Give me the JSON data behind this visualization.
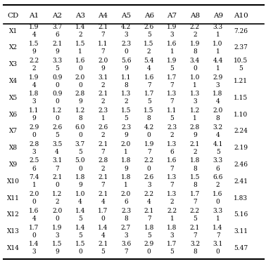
{
  "headers": [
    "CD",
    "A1",
    "A2",
    "A3",
    "A4",
    "A5",
    "A6",
    "A7",
    "A8",
    "A9",
    "A10"
  ],
  "rows": [
    [
      "X1",
      "1.9\n4",
      "3.7\n6",
      "1.4\n2",
      "2.1\n7",
      "4.2\n3",
      "2.6\n5",
      "1.9\n3",
      "2.2\n2",
      "3.3\n1",
      "7.26"
    ],
    [
      "X2",
      "1.5\n9",
      "2.1\n9",
      "1.5\n1",
      "1.1\n7",
      "2.3\n0",
      "1.5\n2",
      "1.6\n1",
      "1.9\n8",
      "1.0\n1",
      "2.37"
    ],
    [
      "X3",
      "2.2\n2",
      "3.3\n5",
      "1.6\n0",
      "2.0\n9",
      "5.6\n9",
      "5.4\n4",
      "1.9\n5",
      "3.4\n0",
      "4.4\n1",
      "10.5\n5"
    ],
    [
      "X4",
      "1.9\n4",
      "0.9\n0",
      "2.0\n0",
      "3.1\n2",
      "1.1\n8",
      "1.6\n7",
      "1.7\n7",
      "1.0\n1",
      "2.9\n3",
      "1.21"
    ],
    [
      "X5",
      "1.8\n3",
      "0.9\n0",
      "2.8\n9",
      "2.1\n2",
      "1.3\n2",
      "1.7\n5",
      "1.3\n7",
      "1.3\n3",
      "1.8\n4",
      "1.15"
    ],
    [
      "X6",
      "1.1\n9",
      "1.2\n0",
      "1.2\n8",
      "2.3\n1",
      "1.5\n5",
      "1.5\n8",
      "1.1\n5",
      "1.2\n1",
      "2.0\n8",
      "1.10"
    ],
    [
      "X7",
      "2.9\n0",
      "2.6\n5",
      "6.0\n0",
      "2.6\n2",
      "2.3\n9",
      "4.2\n0",
      "2.3\n2",
      "2.8\n9",
      "3.2\n4",
      "2.24"
    ],
    [
      "X8",
      "2.8\n3",
      "3.5\n4",
      "3.7\n5",
      "2.1\n7",
      "2.0\n1",
      "1.9\n7",
      "1.3\n6",
      "2.1\n2",
      "4.1\n5",
      "2.19"
    ],
    [
      "X9",
      "2.5\n6",
      "3.1\n7",
      "5.0\n0",
      "2.8\n2",
      "1.8\n9",
      "2.2\n0",
      "1.6\n7",
      "1.8\n8",
      "3.3\n6",
      "2.46"
    ],
    [
      "X10",
      "7.4\n1",
      "2.1\n0",
      "1.8\n9",
      "2.1\n7",
      "1.8\n1",
      "2.6\n3",
      "1.3\n7",
      "1.5\n8",
      "6.6\n2",
      "2.41"
    ],
    [
      "X11",
      "2.0\n0",
      "1.2\n2",
      "1.0\n4",
      "2.1\n4",
      "2.0\n6",
      "2.2\n4",
      "1.3\n2",
      "1.7\n7",
      "1.6\n0",
      "1.83"
    ],
    [
      "X12",
      "1.6\n4",
      "2.0\n0",
      "1.4\n5",
      "1.7\n0",
      "2.3\n8",
      "2.1\n7",
      "2.2\n1",
      "2.2\n5",
      "3.3\n1",
      "5.16"
    ],
    [
      "X13",
      "1.7\n0",
      "1.9\n3",
      "1.4\n5",
      "1.4\n4",
      "2.7\n3",
      "1.8\n5",
      "1.8\n3",
      "2.1\n7",
      "1.4\n7",
      "3.11"
    ],
    [
      "X14",
      "1.4\n3",
      "1.5\n9",
      "1.5\n0",
      "2.1\n5",
      "3.6\n7",
      "2.9\n0",
      "1.7\n5",
      "3.2\n8",
      "3.1\n0",
      "5.47"
    ]
  ],
  "bg_color": "#ffffff",
  "text_color": "#000000",
  "font_size": 6.5,
  "header_font_size": 7.5,
  "fig_width": 3.78,
  "fig_height": 3.76
}
